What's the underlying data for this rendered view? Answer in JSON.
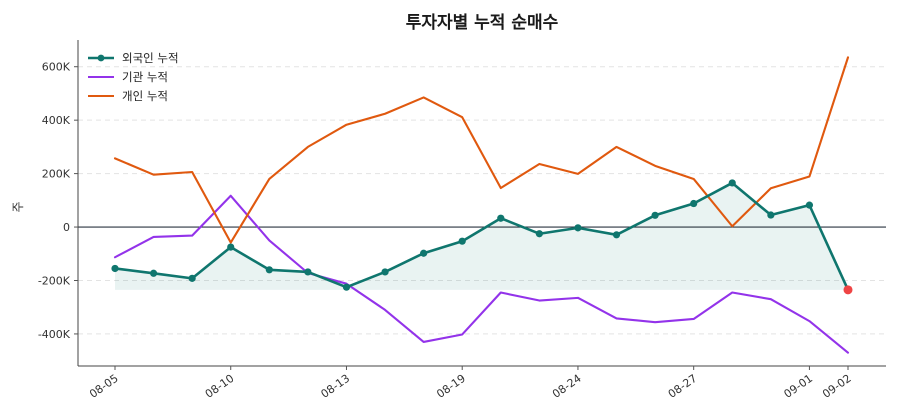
{
  "chart_data": {
    "type": "line",
    "title": "투자자별 누적 순매수",
    "xlabel": "",
    "ylabel": "주",
    "ylim": [
      -520000,
      700000
    ],
    "y_ticks": [
      -400000,
      -200000,
      0,
      200000,
      400000,
      600000
    ],
    "y_tick_labels": [
      "-400K",
      "-200K",
      "0",
      "200K",
      "400K",
      "600K"
    ],
    "x_tick_labels": [
      "08-05",
      "08-10",
      "08-13",
      "08-19",
      "08-24",
      "08-27",
      "09-01",
      "09-02"
    ],
    "x_tick_index": [
      0,
      3,
      6,
      9,
      12,
      15,
      18,
      19
    ],
    "grid": "horizontal-dashed",
    "legend_position": "top-left",
    "baseline": 0,
    "series": [
      {
        "name": "외국인 누적",
        "color": "#0f766e",
        "markers": true,
        "fill": true,
        "values": [
          -155000,
          -173000,
          -192000,
          -75000,
          -160000,
          -168000,
          -225000,
          -168000,
          -98000,
          -53000,
          33000,
          -25000,
          -3000,
          -29000,
          44000,
          88000,
          165000,
          45000,
          82000,
          -235000
        ]
      },
      {
        "name": "기관 누적",
        "color": "#9333ea",
        "markers": false,
        "fill": false,
        "values": [
          -113000,
          -37000,
          -32000,
          117000,
          -50000,
          -172000,
          -212000,
          -310000,
          -430000,
          -402000,
          -245000,
          -275000,
          -265000,
          -342000,
          -356000,
          -344000,
          -245000,
          -270000,
          -352000,
          -470000
        ]
      },
      {
        "name": "개인 누적",
        "color": "#e0590f",
        "markers": false,
        "fill": false,
        "values": [
          257000,
          196000,
          206000,
          -58000,
          180000,
          300000,
          383000,
          424000,
          485000,
          411000,
          146000,
          236000,
          199000,
          300000,
          229000,
          180000,
          3000,
          145000,
          189000,
          635000
        ]
      }
    ],
    "highlight_point": {
      "series": "외국인 누적",
      "index": 19,
      "color": "#ef4444"
    }
  }
}
